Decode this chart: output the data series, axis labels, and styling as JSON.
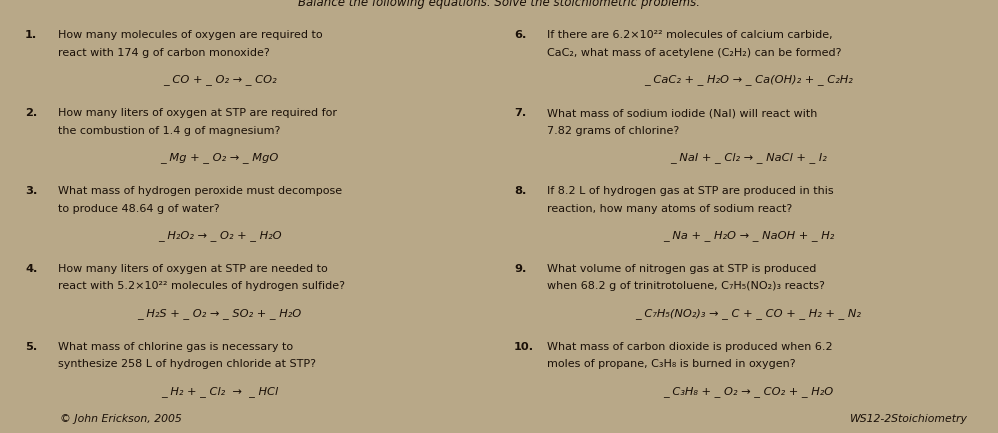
{
  "bg_color": "#b8a888",
  "text_color": "#1a1008",
  "figsize": [
    9.98,
    4.33
  ],
  "dpi": 100,
  "left_questions": [
    {
      "num": "1.",
      "lines": [
        "How many molecules of oxygen are required to",
        "react with 174 g of carbon monoxide?"
      ],
      "equation": "_ CO + _ O₂ → _ CO₂"
    },
    {
      "num": "2.",
      "lines": [
        "How many liters of oxygen at STP are required for",
        "the combustion of 1.4 g of magnesium?"
      ],
      "equation": "_ Mg + _ O₂ → _ MgO"
    },
    {
      "num": "3.",
      "lines": [
        "What mass of hydrogen peroxide must decompose",
        "to produce 48.64 g of water?"
      ],
      "equation": "_ H₂O₂ → _ O₂ + _ H₂O"
    },
    {
      "num": "4.",
      "lines": [
        "How many liters of oxygen at STP are needed to",
        "react with 5.2×10²² molecules of hydrogen sulfide?"
      ],
      "equation": "_ H₂S + _ O₂ → _ SO₂ + _ H₂O"
    },
    {
      "num": "5.",
      "lines": [
        "What mass of chlorine gas is necessary to",
        "synthesize 258 L of hydrogen chloride at STP?"
      ],
      "equation": "_ H₂ + _ Cl₂  →  _ HCl"
    }
  ],
  "right_questions": [
    {
      "num": "6.",
      "lines": [
        "If there are 6.2×10²² molecules of calcium carbide,",
        "CaC₂, what mass of acetylene (C₂H₂) can be formed?"
      ],
      "equation": "_ CaC₂ + _ H₂O → _ Ca(OH)₂ + _ C₂H₂"
    },
    {
      "num": "7.",
      "lines": [
        "What mass of sodium iodide (NaI) will react with",
        "7.82 grams of chlorine?"
      ],
      "equation": "_ NaI + _ Cl₂ → _ NaCl + _ I₂"
    },
    {
      "num": "8.",
      "lines": [
        "If 8.2 L of hydrogen gas at STP are produced in this",
        "reaction, how many atoms of sodium react?"
      ],
      "equation": "_ Na + _ H₂O → _ NaOH + _ H₂"
    },
    {
      "num": "9.",
      "lines": [
        "What volume of nitrogen gas at STP is produced",
        "when 68.2 g of trinitrotoluene, C₇H₅(NO₂)₃ reacts?"
      ],
      "equation": "_ C₇H₅(NO₂)₃ → _ C + _ CO + _ H₂ + _ N₂"
    },
    {
      "num": "10.",
      "lines": [
        "What mass of carbon dioxide is produced when 6.2",
        "moles of propane, C₃H₈ is burned in oxygen?"
      ],
      "equation": "_ C₃H₈ + _ O₂ → _ CO₂ + _ H₂O"
    }
  ],
  "footer_left": "© John Erickson, 2005",
  "footer_right": "WS12-2Stoichiometry",
  "top_banner": "Balance the following equations. Solve the stoichiometric problems."
}
